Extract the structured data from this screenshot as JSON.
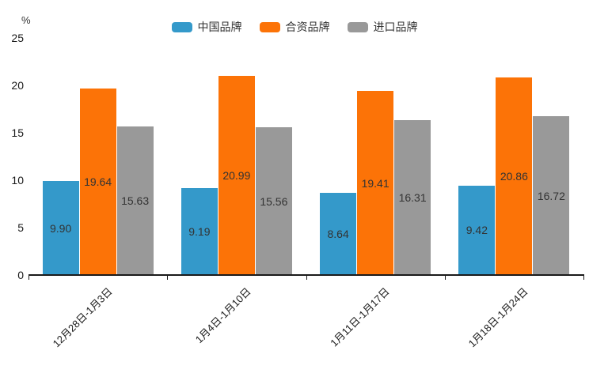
{
  "chart_data": {
    "type": "bar",
    "title": "",
    "xlabel": "",
    "ylabel": "%",
    "ylim": [
      0,
      25
    ],
    "yticks": [
      0,
      5,
      10,
      15,
      20,
      25
    ],
    "grid": false,
    "legend_position": "top",
    "value_labels": "inside-center",
    "categories": [
      "12月28日-1月3日",
      "1月4日-1月10日",
      "1月11日-1月17日",
      "1月18日-1月24日"
    ],
    "series": [
      {
        "name": "中国品牌",
        "color": "#3499ca",
        "values": [
          9.9,
          9.19,
          8.64,
          9.42
        ]
      },
      {
        "name": "合资品牌",
        "color": "#fc7307",
        "values": [
          19.64,
          20.99,
          19.41,
          20.86
        ]
      },
      {
        "name": "进口品牌",
        "color": "#999999",
        "values": [
          15.63,
          15.56,
          16.31,
          16.72
        ]
      }
    ],
    "colors": {
      "axis": "#1a1a1a",
      "value_label": "#333333",
      "background": "#ffffff"
    }
  }
}
